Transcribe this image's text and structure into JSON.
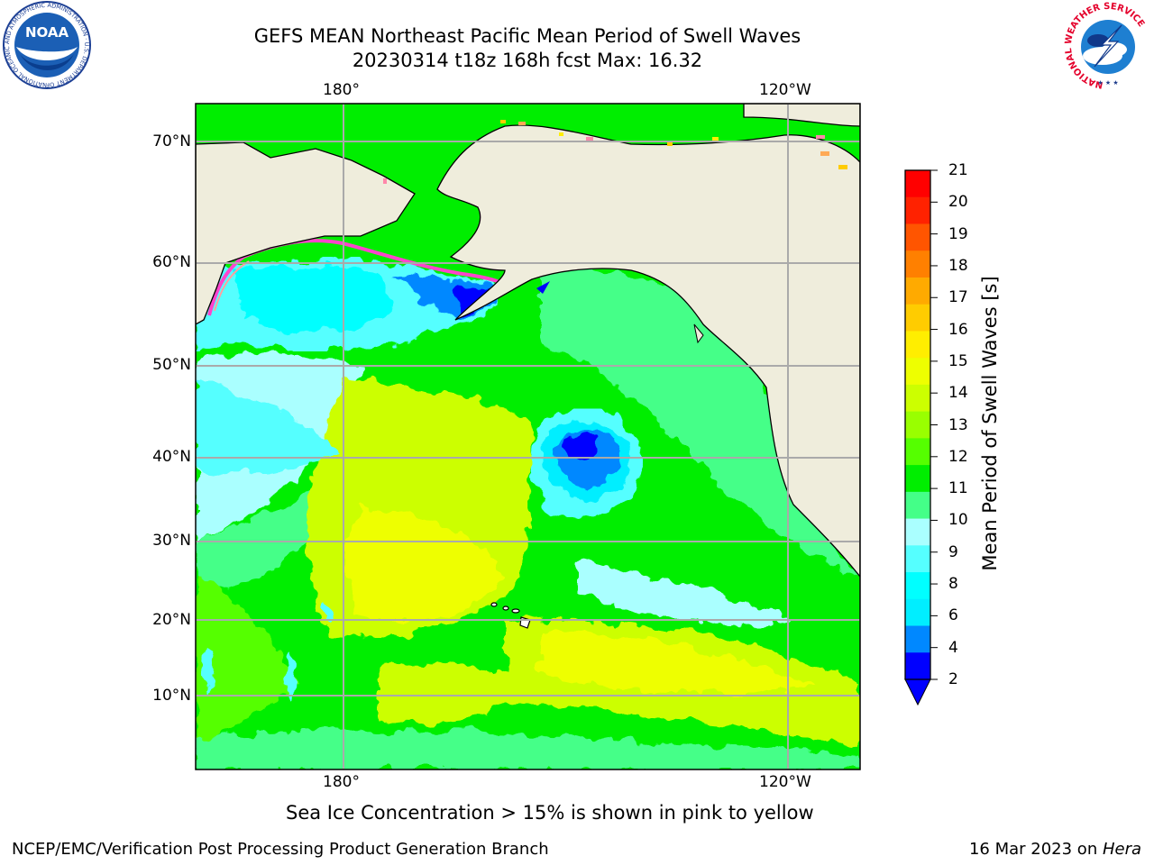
{
  "title": {
    "line1": "GEFS MEAN Northeast Pacific Mean Period of Swell Waves",
    "line2": "20230314 t18z 168h fcst   Max: 16.32"
  },
  "axes": {
    "top_lon_labels": [
      "180°",
      "120°W"
    ],
    "bottom_lon_labels": [
      "180°",
      "120°W"
    ],
    "lat_labels": [
      "70°N",
      "60°N",
      "50°N",
      "40°N",
      "30°N",
      "20°N",
      "10°N"
    ]
  },
  "colorbar": {
    "label": "Mean Period of Swell Waves [s]",
    "ticks": [
      "21",
      "20",
      "19",
      "18",
      "17",
      "16",
      "15",
      "14",
      "13",
      "12",
      "11",
      "10",
      "9",
      "8",
      "6",
      "4",
      "2"
    ],
    "colors": [
      "#ff0000",
      "#ff2200",
      "#ff5500",
      "#ff8000",
      "#ffaa00",
      "#ffcc00",
      "#ffee00",
      "#eeff00",
      "#ccff00",
      "#99ff00",
      "#55ff00",
      "#00ee00",
      "#44ff88",
      "#aaffff",
      "#55ffff",
      "#00ffff",
      "#00eeff",
      "#0088ff",
      "#0000ff"
    ]
  },
  "note": "Sea Ice Concentration > 15% is shown in pink to yellow",
  "footer": {
    "left": "NCEP/EMC/Verification Post Processing Product Generation Branch",
    "right_prefix": "16 Mar 2023 on ",
    "right_machine": "Hera"
  },
  "logos": {
    "noaa_text": "NOAA",
    "noaa_ring": "NATIONAL OCEANIC AND ATMOSPHERIC ADMINISTRATION · U.S. DEPARTMENT OF COMMERCE",
    "nws_ring": "NATIONAL WEATHER SERVICE"
  }
}
